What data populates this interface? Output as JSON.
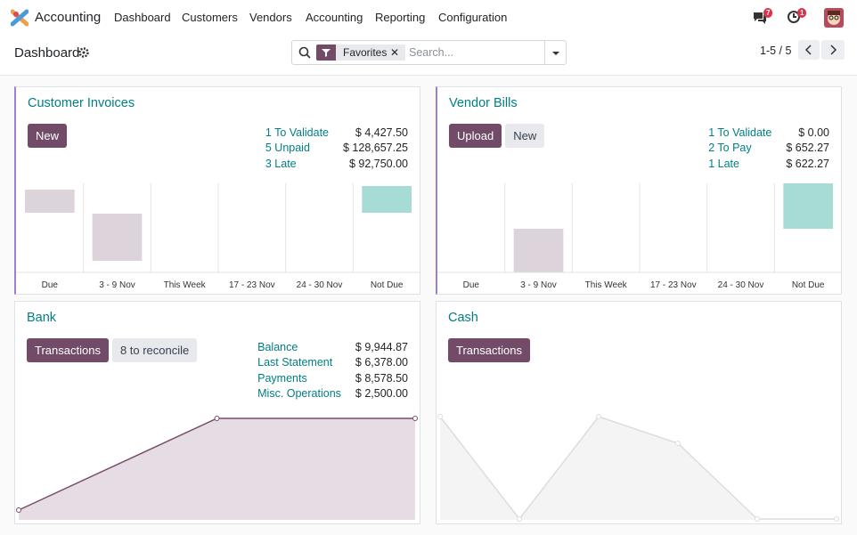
{
  "navbar": {
    "app": "Accounting",
    "menu": [
      "Dashboard",
      "Customers",
      "Vendors",
      "Accounting",
      "Reporting",
      "Configuration"
    ],
    "messages_badge": 7,
    "activities_badge": 1
  },
  "control_panel": {
    "title": "Dashboard",
    "facet": "Favorites",
    "search_placeholder": "Search...",
    "pager": "1-5 / 5"
  },
  "journals": [
    {
      "title": "Customer Invoices",
      "buttons": [
        "New"
      ],
      "stats": [
        {
          "label": "1 To Validate",
          "amount": "$ 4,427.50"
        },
        {
          "label": "5 Unpaid",
          "amount": "$ 128,657.25"
        },
        {
          "label": "3 Late",
          "amount": "$ 92,750.00"
        }
      ],
      "graph": {
        "type": "bar",
        "categories": [
          "Due",
          "3 - 9 Nov",
          "This Week",
          "17 - 23 Nov",
          "24 - 30 Nov",
          "Not Due"
        ],
        "low": [
          67,
          13,
          null,
          null,
          null,
          67
        ],
        "high": [
          93,
          66,
          null,
          null,
          null,
          97
        ],
        "colors": [
          "#ddd3da",
          "#ddd3da",
          "#ddd3da",
          "#ddd3da",
          "#ddd3da",
          "#a6dbd6"
        ],
        "ylim": [
          0,
          100
        ]
      }
    },
    {
      "title": "Vendor Bills",
      "buttons": [
        "Upload",
        "New"
      ],
      "stats": [
        {
          "label": "1 To Validate",
          "amount": "$ 0.00"
        },
        {
          "label": "2 To Pay",
          "amount": "$ 652.27"
        },
        {
          "label": "1 Late",
          "amount": "$ 622.27"
        }
      ],
      "graph": {
        "type": "bar",
        "categories": [
          "Due",
          "3 - 9 Nov",
          "This Week",
          "17 - 23 Nov",
          "24 - 30 Nov",
          "Not Due"
        ],
        "low": [
          null,
          0,
          null,
          null,
          null,
          49
        ],
        "high": [
          null,
          49,
          null,
          null,
          null,
          100
        ],
        "colors": [
          "#ddd3da",
          "#ddd3da",
          "#ddd3da",
          "#ddd3da",
          "#ddd3da",
          "#a6dbd6"
        ],
        "ylim": [
          0,
          100
        ]
      }
    },
    {
      "title": "Bank",
      "buttons": [
        "Transactions",
        "8 to reconcile"
      ],
      "stats": [
        {
          "label": "Balance",
          "amount": "$ 9,944.87"
        },
        {
          "label": "Last Statement",
          "amount": "$ 6,378.00"
        },
        {
          "label": "Payments",
          "amount": "$ 8,578.50"
        },
        {
          "label": "Misc. Operations",
          "amount": "$ 2,500.00"
        }
      ],
      "graph": {
        "type": "line",
        "values": [
          11,
          114,
          114
        ],
        "ylim": [
          0,
          125
        ],
        "color": "#7b4a6b",
        "fill": "#e5dde3"
      }
    },
    {
      "title": "Cash",
      "buttons": [
        "Transactions"
      ],
      "stats": [],
      "graph": {
        "type": "line",
        "values": [
          116,
          1,
          116,
          86,
          1,
          1
        ],
        "ylim": [
          0,
          125
        ],
        "color": "#dddddd",
        "fill": "#f4f4f4"
      }
    }
  ]
}
